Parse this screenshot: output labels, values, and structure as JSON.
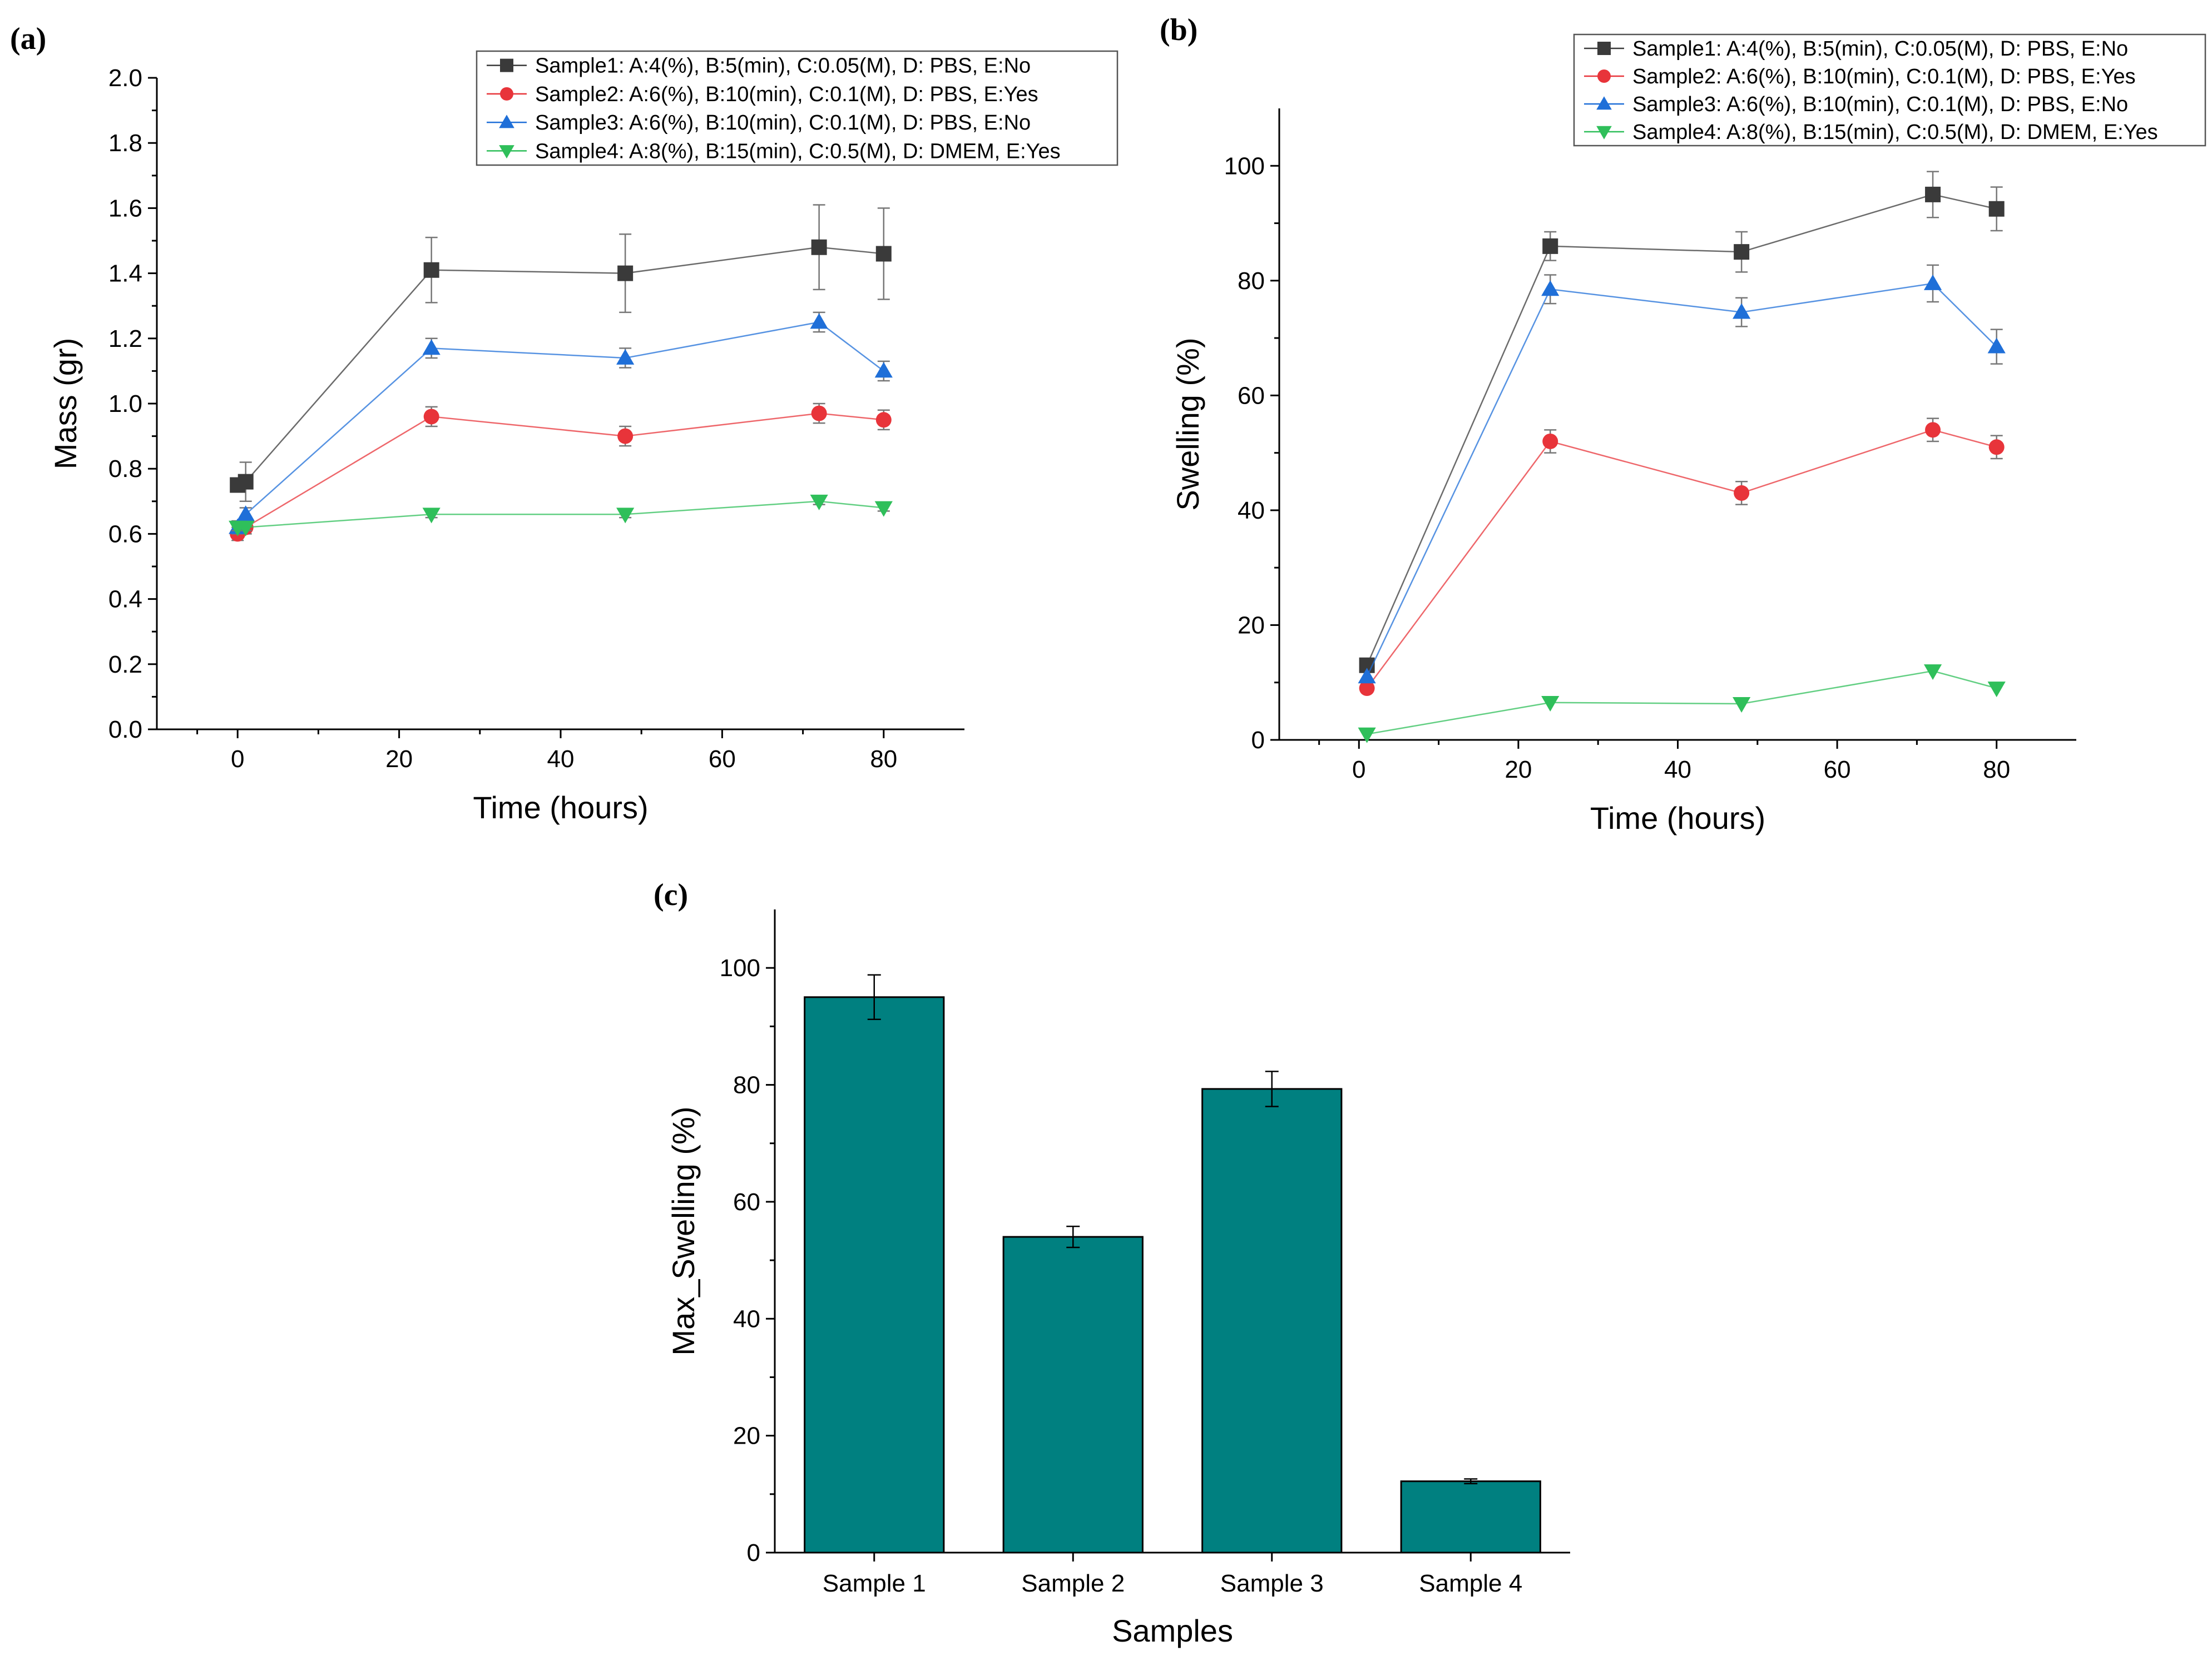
{
  "chart_data": [
    {
      "panel": "(a)",
      "type": "line",
      "title": "",
      "xlabel": "Time (hours)",
      "ylabel": "Mass (gr)",
      "xlim": [
        -10,
        90
      ],
      "ylim": [
        0.0,
        2.0
      ],
      "xticks": [
        0,
        20,
        40,
        60,
        80
      ],
      "yticks": [
        0.0,
        0.2,
        0.4,
        0.6,
        0.8,
        1.0,
        1.2,
        1.4,
        1.6,
        1.8,
        2.0
      ],
      "tick_decimals": 1,
      "grid": false,
      "legend_position": "top-right",
      "series": [
        {
          "name": "Sample1: A:4(%), B:5(min), C:0.05(M), D: PBS, E:No",
          "color": "#3a3a3a",
          "marker": "square",
          "x": [
            0,
            1,
            24,
            48,
            72,
            80
          ],
          "y": [
            0.75,
            0.76,
            1.41,
            1.4,
            1.48,
            1.46
          ],
          "err": [
            0.0,
            0.06,
            0.1,
            0.12,
            0.13,
            0.14
          ]
        },
        {
          "name": "Sample2: A:6(%), B:10(min), C:0.1(M), D: PBS, E:Yes",
          "color": "#e8343a",
          "marker": "circle",
          "x": [
            0,
            1,
            24,
            48,
            72,
            80
          ],
          "y": [
            0.6,
            0.62,
            0.96,
            0.9,
            0.97,
            0.95
          ],
          "err": [
            0.02,
            0.02,
            0.03,
            0.03,
            0.03,
            0.03
          ]
        },
        {
          "name": "Sample3: A:6(%), B:10(min), C:0.1(M), D: PBS, E:No",
          "color": "#1f6fd8",
          "marker": "triangle-up",
          "x": [
            0,
            1,
            24,
            48,
            72,
            80
          ],
          "y": [
            0.62,
            0.66,
            1.17,
            1.14,
            1.25,
            1.1
          ],
          "err": [
            0.02,
            0.02,
            0.03,
            0.03,
            0.03,
            0.03
          ]
        },
        {
          "name": "Sample4: A:8(%), B:15(min), C:0.5(M), D: DMEM, E:Yes",
          "color": "#2fbf5a",
          "marker": "triangle-down",
          "x": [
            0,
            1,
            24,
            48,
            72,
            80
          ],
          "y": [
            0.62,
            0.62,
            0.66,
            0.66,
            0.7,
            0.68
          ],
          "err": [
            0.01,
            0.01,
            0.01,
            0.01,
            0.01,
            0.01
          ]
        }
      ]
    },
    {
      "panel": "(b)",
      "type": "line",
      "title": "",
      "xlabel": "Time (hours)",
      "ylabel": "Swelling (%)",
      "xlim": [
        -10,
        90
      ],
      "ylim": [
        0,
        110
      ],
      "xticks": [
        0,
        20,
        40,
        60,
        80
      ],
      "yticks": [
        0,
        20,
        40,
        60,
        80,
        100
      ],
      "tick_decimals": 0,
      "grid": false,
      "legend_position": "top-right",
      "series": [
        {
          "name": "Sample1: A:4(%), B:5(min), C:0.05(M), D: PBS, E:No",
          "color": "#3a3a3a",
          "marker": "square",
          "x": [
            1,
            24,
            48,
            72,
            80
          ],
          "y": [
            13,
            86,
            85,
            95,
            92.5
          ],
          "err": [
            0,
            2.5,
            3.5,
            4,
            3.8
          ]
        },
        {
          "name": "Sample2: A:6(%), B:10(min), C:0.1(M), D: PBS, E:Yes",
          "color": "#e8343a",
          "marker": "circle",
          "x": [
            1,
            24,
            48,
            72,
            80
          ],
          "y": [
            9,
            52,
            43,
            54,
            51
          ],
          "err": [
            0,
            2,
            2,
            2,
            2
          ]
        },
        {
          "name": "Sample3: A:6(%), B:10(min), C:0.1(M), D: PBS, E:No",
          "color": "#1f6fd8",
          "marker": "triangle-up",
          "x": [
            1,
            24,
            48,
            72,
            80
          ],
          "y": [
            11,
            78.5,
            74.5,
            79.5,
            68.5
          ],
          "err": [
            0,
            2.5,
            2.5,
            3.2,
            3
          ]
        },
        {
          "name": "Sample4: A:8(%), B:15(min), C:0.5(M), D: DMEM, E:Yes",
          "color": "#2fbf5a",
          "marker": "triangle-down",
          "x": [
            1,
            24,
            48,
            72,
            80
          ],
          "y": [
            1,
            6.5,
            6.3,
            12,
            9
          ],
          "err": [
            0,
            0,
            0,
            0,
            0
          ]
        }
      ]
    },
    {
      "panel": "(c)",
      "type": "bar",
      "title": "",
      "xlabel": "Samples",
      "ylabel": "Max_Swelling (%)",
      "ylim": [
        0,
        110
      ],
      "yticks": [
        0,
        20,
        40,
        60,
        80,
        100
      ],
      "tick_decimals": 0,
      "grid": false,
      "color": "#008080",
      "categories": [
        "Sample 1",
        "Sample 2",
        "Sample 3",
        "Sample 4"
      ],
      "values": [
        95,
        54,
        79.3,
        12.2
      ],
      "err": [
        3.8,
        1.8,
        3.0,
        0.4
      ]
    }
  ]
}
